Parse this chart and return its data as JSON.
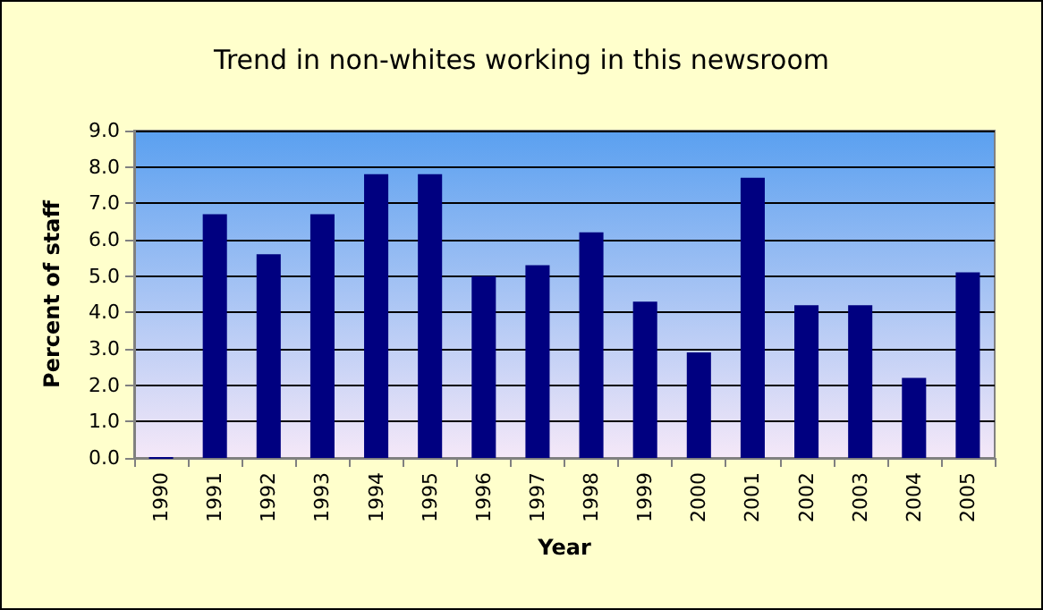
{
  "chart_data": {
    "type": "bar",
    "title": "Trend in non-whites working in this newsroom",
    "xlabel": "Year",
    "ylabel": "Percent of staff",
    "categories": [
      "1990",
      "1991",
      "1992",
      "1993",
      "1994",
      "1995",
      "1996",
      "1997",
      "1998",
      "1999",
      "2000",
      "2001",
      "2002",
      "2003",
      "2004",
      "2005"
    ],
    "values": [
      0,
      6.7,
      5.6,
      6.7,
      7.8,
      7.8,
      5.0,
      5.3,
      6.2,
      4.3,
      2.9,
      7.7,
      4.2,
      4.2,
      2.2,
      5.1
    ],
    "color": "#000080",
    "ylim": [
      0,
      9
    ],
    "yticks": [
      {
        "value": 0,
        "label": "0.0"
      },
      {
        "value": 1,
        "label": "1.0"
      },
      {
        "value": 2,
        "label": "2.0"
      },
      {
        "value": 3,
        "label": "3.0"
      },
      {
        "value": 4,
        "label": "4.0"
      },
      {
        "value": 5,
        "label": "5.0"
      },
      {
        "value": 6,
        "label": "6.0"
      },
      {
        "value": 7,
        "label": "7.0"
      },
      {
        "value": 8,
        "label": "8.0"
      },
      {
        "value": 9,
        "label": "9.0"
      }
    ],
    "grid": "y"
  }
}
